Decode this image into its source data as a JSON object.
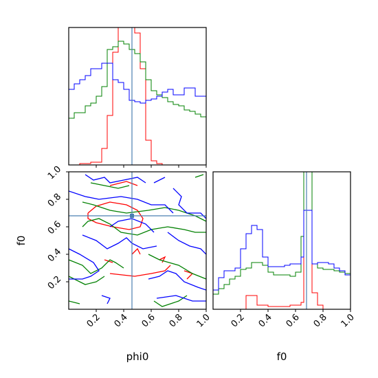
{
  "chart_data": {
    "type": "corner",
    "parameters": [
      "phi0",
      "f0"
    ],
    "xlabels": [
      "phi0",
      "f0"
    ],
    "ylabels": [
      "",
      "f0"
    ],
    "truths": {
      "phi0": 0.46,
      "f0": 0.68
    },
    "truth_color": "#4a7fb0",
    "ticks": [
      0.2,
      0.4,
      0.6,
      0.8,
      1.0
    ],
    "tick_labels": [
      "0.2",
      "0.4",
      "0.6",
      "0.8",
      "1.0"
    ],
    "range": [
      0.0,
      1.0
    ],
    "series": [
      {
        "color": "#ff0000"
      },
      {
        "color": "#008000"
      },
      {
        "color": "#0000ff"
      }
    ],
    "histograms": [
      {
        "parameter": "phi0",
        "edges": [
          0.0,
          0.04,
          0.08,
          0.12,
          0.16,
          0.2,
          0.24,
          0.28,
          0.32,
          0.36,
          0.4,
          0.44,
          0.48,
          0.52,
          0.56,
          0.6,
          0.64,
          0.68,
          0.72,
          0.76,
          0.8,
          0.84,
          0.88,
          0.92,
          0.96,
          1.0
        ],
        "ymax": 1.0,
        "counts": [
          [
            0.0,
            0.0,
            0.01,
            0.01,
            0.02,
            0.02,
            0.12,
            0.36,
            0.82,
            1.15,
            1.2,
            1.12,
            0.96,
            0.7,
            0.18,
            0.03,
            0.01,
            0.0,
            0.0,
            0.0,
            0.0,
            0.0,
            0.0,
            0.0,
            0.0
          ],
          [
            0.34,
            0.38,
            0.38,
            0.43,
            0.45,
            0.5,
            0.57,
            0.84,
            0.86,
            0.9,
            0.88,
            0.84,
            0.81,
            0.75,
            0.62,
            0.54,
            0.51,
            0.49,
            0.46,
            0.44,
            0.43,
            0.4,
            0.39,
            0.37,
            0.35
          ],
          [
            0.55,
            0.59,
            0.62,
            0.65,
            0.7,
            0.7,
            0.74,
            0.74,
            0.62,
            0.6,
            0.55,
            0.47,
            0.46,
            0.45,
            0.47,
            0.48,
            0.5,
            0.53,
            0.55,
            0.51,
            0.51,
            0.56,
            0.56,
            0.5,
            0.5
          ]
        ]
      },
      {
        "parameter": "f0",
        "edges": [
          0.0,
          0.04,
          0.08,
          0.12,
          0.16,
          0.2,
          0.24,
          0.28,
          0.32,
          0.36,
          0.4,
          0.44,
          0.48,
          0.52,
          0.56,
          0.6,
          0.64,
          0.66,
          0.68,
          0.72,
          0.76,
          0.8,
          0.84,
          0.88,
          0.92,
          0.96,
          1.0
        ],
        "ymax": 1.0,
        "counts": [
          [
            0.0,
            0.0,
            0.0,
            0.0,
            0.0,
            0.0,
            0.1,
            0.1,
            0.03,
            0.03,
            0.02,
            0.02,
            0.02,
            0.02,
            0.03,
            0.03,
            0.05,
            1.6,
            1.6,
            0.12,
            0.03,
            0.0,
            0.0,
            0.0,
            0.0,
            0.0
          ],
          [
            0.11,
            0.15,
            0.18,
            0.22,
            0.24,
            0.29,
            0.3,
            0.34,
            0.34,
            0.32,
            0.27,
            0.25,
            0.25,
            0.25,
            0.24,
            0.27,
            0.53,
            1.04,
            1.04,
            0.33,
            0.3,
            0.29,
            0.29,
            0.28,
            0.27,
            0.26
          ],
          [
            0.14,
            0.23,
            0.28,
            0.28,
            0.3,
            0.44,
            0.55,
            0.61,
            0.58,
            0.38,
            0.31,
            0.31,
            0.31,
            0.32,
            0.33,
            0.33,
            0.38,
            0.72,
            0.72,
            0.33,
            0.34,
            0.34,
            0.33,
            0.3,
            0.28,
            0.25
          ]
        ]
      }
    ],
    "contours_2d": {
      "x": "phi0",
      "y": "f0",
      "series": [
        {
          "color": "#ff0000",
          "paths": [
            [
              [
                0.14,
                0.7
              ],
              [
                0.2,
                0.75
              ],
              [
                0.3,
                0.78
              ],
              [
                0.42,
                0.76
              ],
              [
                0.5,
                0.72
              ],
              [
                0.54,
                0.66
              ],
              [
                0.52,
                0.6
              ],
              [
                0.44,
                0.58
              ],
              [
                0.32,
                0.6
              ],
              [
                0.2,
                0.63
              ],
              [
                0.14,
                0.66
              ],
              [
                0.14,
                0.7
              ]
            ],
            [
              [
                0.3,
                0.9
              ],
              [
                0.42,
                0.93
              ],
              [
                0.5,
                0.9
              ]
            ],
            [
              [
                0.46,
                0.4
              ],
              [
                0.5,
                0.44
              ],
              [
                0.52,
                0.4
              ]
            ],
            [
              [
                0.26,
                0.36
              ],
              [
                0.32,
                0.34
              ]
            ],
            [
              [
                0.66,
                0.36
              ],
              [
                0.7,
                0.38
              ],
              [
                0.68,
                0.34
              ]
            ],
            [
              [
                0.3,
                0.26
              ],
              [
                0.48,
                0.24
              ],
              [
                0.6,
                0.26
              ],
              [
                0.7,
                0.28
              ],
              [
                0.74,
                0.32
              ]
            ],
            [
              [
                0.84,
                0.28
              ],
              [
                0.9,
                0.26
              ],
              [
                0.86,
                0.22
              ]
            ]
          ]
        },
        {
          "color": "#008000",
          "paths": [
            [
              [
                0.1,
                0.78
              ],
              [
                0.18,
                0.76
              ],
              [
                0.3,
                0.72
              ],
              [
                0.42,
                0.7
              ],
              [
                0.58,
                0.72
              ],
              [
                0.7,
                0.74
              ],
              [
                0.8,
                0.72
              ],
              [
                0.92,
                0.68
              ],
              [
                1.0,
                0.64
              ]
            ],
            [
              [
                0.1,
                0.6
              ],
              [
                0.14,
                0.64
              ],
              [
                0.22,
                0.66
              ],
              [
                0.3,
                0.62
              ],
              [
                0.38,
                0.56
              ],
              [
                0.5,
                0.54
              ],
              [
                0.6,
                0.58
              ],
              [
                0.72,
                0.6
              ],
              [
                0.84,
                0.58
              ],
              [
                0.92,
                0.56
              ],
              [
                1.0,
                0.56
              ]
            ],
            [
              [
                0.16,
                0.92
              ],
              [
                0.26,
                0.9
              ],
              [
                0.36,
                0.88
              ],
              [
                0.44,
                0.9
              ]
            ],
            [
              [
                0.92,
                0.96
              ],
              [
                0.98,
                0.98
              ]
            ],
            [
              [
                0.0,
                0.36
              ],
              [
                0.1,
                0.32
              ],
              [
                0.16,
                0.26
              ],
              [
                0.24,
                0.3
              ],
              [
                0.3,
                0.36
              ],
              [
                0.34,
                0.34
              ],
              [
                0.4,
                0.3
              ]
            ],
            [
              [
                0.0,
                0.24
              ],
              [
                0.12,
                0.18
              ],
              [
                0.2,
                0.2
              ],
              [
                0.26,
                0.24
              ]
            ],
            [
              [
                0.58,
                0.4
              ],
              [
                0.66,
                0.36
              ],
              [
                0.8,
                0.32
              ],
              [
                0.9,
                0.26
              ],
              [
                1.0,
                0.22
              ]
            ],
            [
              [
                0.62,
                0.06
              ],
              [
                0.68,
                0.02
              ],
              [
                0.8,
                0.06
              ],
              [
                0.86,
                0.1
              ]
            ],
            [
              [
                0.0,
                0.06
              ],
              [
                0.08,
                0.04
              ]
            ]
          ]
        },
        {
          "color": "#0000ff",
          "paths": [
            [
              [
                0.12,
                0.98
              ],
              [
                0.18,
                0.94
              ],
              [
                0.26,
                0.96
              ],
              [
                0.3,
                0.92
              ],
              [
                0.4,
                0.94
              ],
              [
                0.5,
                0.96
              ],
              [
                0.56,
                0.92
              ]
            ],
            [
              [
                0.62,
                0.92
              ],
              [
                0.7,
                0.96
              ]
            ],
            [
              [
                0.76,
                0.88
              ],
              [
                0.82,
                0.82
              ],
              [
                0.8,
                0.76
              ],
              [
                0.86,
                0.7
              ],
              [
                0.96,
                0.7
              ],
              [
                1.0,
                0.66
              ]
            ],
            [
              [
                0.0,
                0.86
              ],
              [
                0.12,
                0.82
              ],
              [
                0.22,
                0.8
              ],
              [
                0.38,
                0.82
              ],
              [
                0.5,
                0.8
              ],
              [
                0.6,
                0.76
              ],
              [
                0.7,
                0.76
              ],
              [
                0.76,
                0.7
              ]
            ],
            [
              [
                0.3,
                0.6
              ],
              [
                0.36,
                0.64
              ],
              [
                0.46,
                0.66
              ],
              [
                0.56,
                0.62
              ],
              [
                0.62,
                0.56
              ]
            ],
            [
              [
                0.1,
                0.54
              ],
              [
                0.2,
                0.5
              ],
              [
                0.28,
                0.44
              ],
              [
                0.36,
                0.48
              ],
              [
                0.42,
                0.52
              ],
              [
                0.46,
                0.48
              ],
              [
                0.54,
                0.44
              ],
              [
                0.64,
                0.46
              ]
            ],
            [
              [
                0.72,
                0.56
              ],
              [
                0.8,
                0.5
              ],
              [
                0.88,
                0.46
              ],
              [
                0.96,
                0.44
              ],
              [
                1.0,
                0.4
              ]
            ],
            [
              [
                0.0,
                0.44
              ],
              [
                0.08,
                0.4
              ],
              [
                0.18,
                0.34
              ],
              [
                0.22,
                0.28
              ],
              [
                0.16,
                0.24
              ],
              [
                0.1,
                0.22
              ],
              [
                0.0,
                0.22
              ]
            ],
            [
              [
                0.58,
                0.22
              ],
              [
                0.66,
                0.24
              ],
              [
                0.72,
                0.28
              ],
              [
                0.78,
                0.26
              ],
              [
                0.84,
                0.2
              ],
              [
                0.94,
                0.16
              ],
              [
                1.0,
                0.14
              ]
            ],
            [
              [
                0.24,
                0.1
              ],
              [
                0.3,
                0.08
              ],
              [
                0.28,
                0.04
              ]
            ],
            [
              [
                0.64,
                0.08
              ],
              [
                0.78,
                0.1
              ],
              [
                0.9,
                0.06
              ],
              [
                1.0,
                0.06
              ]
            ]
          ]
        }
      ]
    }
  }
}
